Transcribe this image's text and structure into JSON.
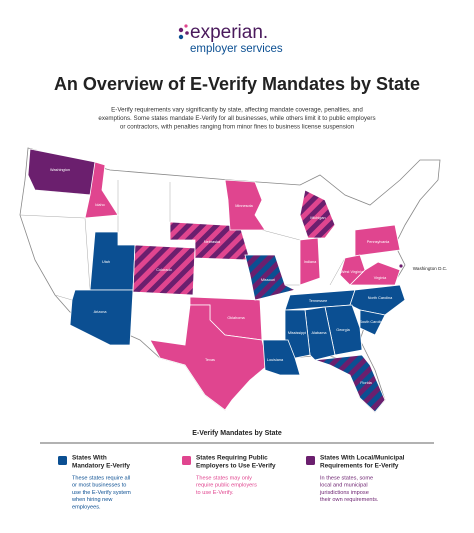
{
  "header": {
    "logo": "experian.",
    "logo_subtitle": "employer services",
    "title": "An Overview of E-Verify Mandates by State",
    "description_lines": [
      "E-Verify requirements vary significantly by state, affecting mandate coverage, penalties, and",
      "exemptions. Some states mandate E-Verify for all businesses, while others limit it to public employers",
      "or contractors, with penalties ranging from minor fines to business license suspension"
    ]
  },
  "map": {
    "state_labels": [
      "Washington",
      "Idaho",
      "Utah",
      "Arizona",
      "Colorado",
      "Nebraska",
      "Minnesota",
      "Missouri",
      "Oklahoma",
      "Texas",
      "Louisiana",
      "Mississippi",
      "Alabama",
      "Georgia",
      "Tennessee",
      "North Carolina",
      "South Carolina",
      "Florida",
      "Indiana",
      "Michigan",
      "Pennsylvania",
      "West Virginia",
      "Virginia",
      "Washington D.C."
    ]
  },
  "legend": {
    "title": "E-Verify Mandates by State",
    "items": [
      {
        "title_lines": [
          "States With",
          "Mandatory E-Verify"
        ],
        "description_lines": [
          "These states require all",
          "or most businesses to",
          "use the E-Verify system",
          "when hiring new",
          "employees."
        ]
      },
      {
        "title_lines": [
          "States Requiring Public",
          "Employers to Use E-Verify"
        ],
        "description_lines": [
          "These states may only",
          "require public employers",
          "to use E-Verify."
        ]
      },
      {
        "title_lines": [
          "States With Local/Municipal",
          "Requirements for E-Verify"
        ],
        "description_lines": [
          "In these states, some",
          "local and municipal",
          "jurisdictions impose",
          "their own requirements."
        ]
      }
    ]
  }
}
